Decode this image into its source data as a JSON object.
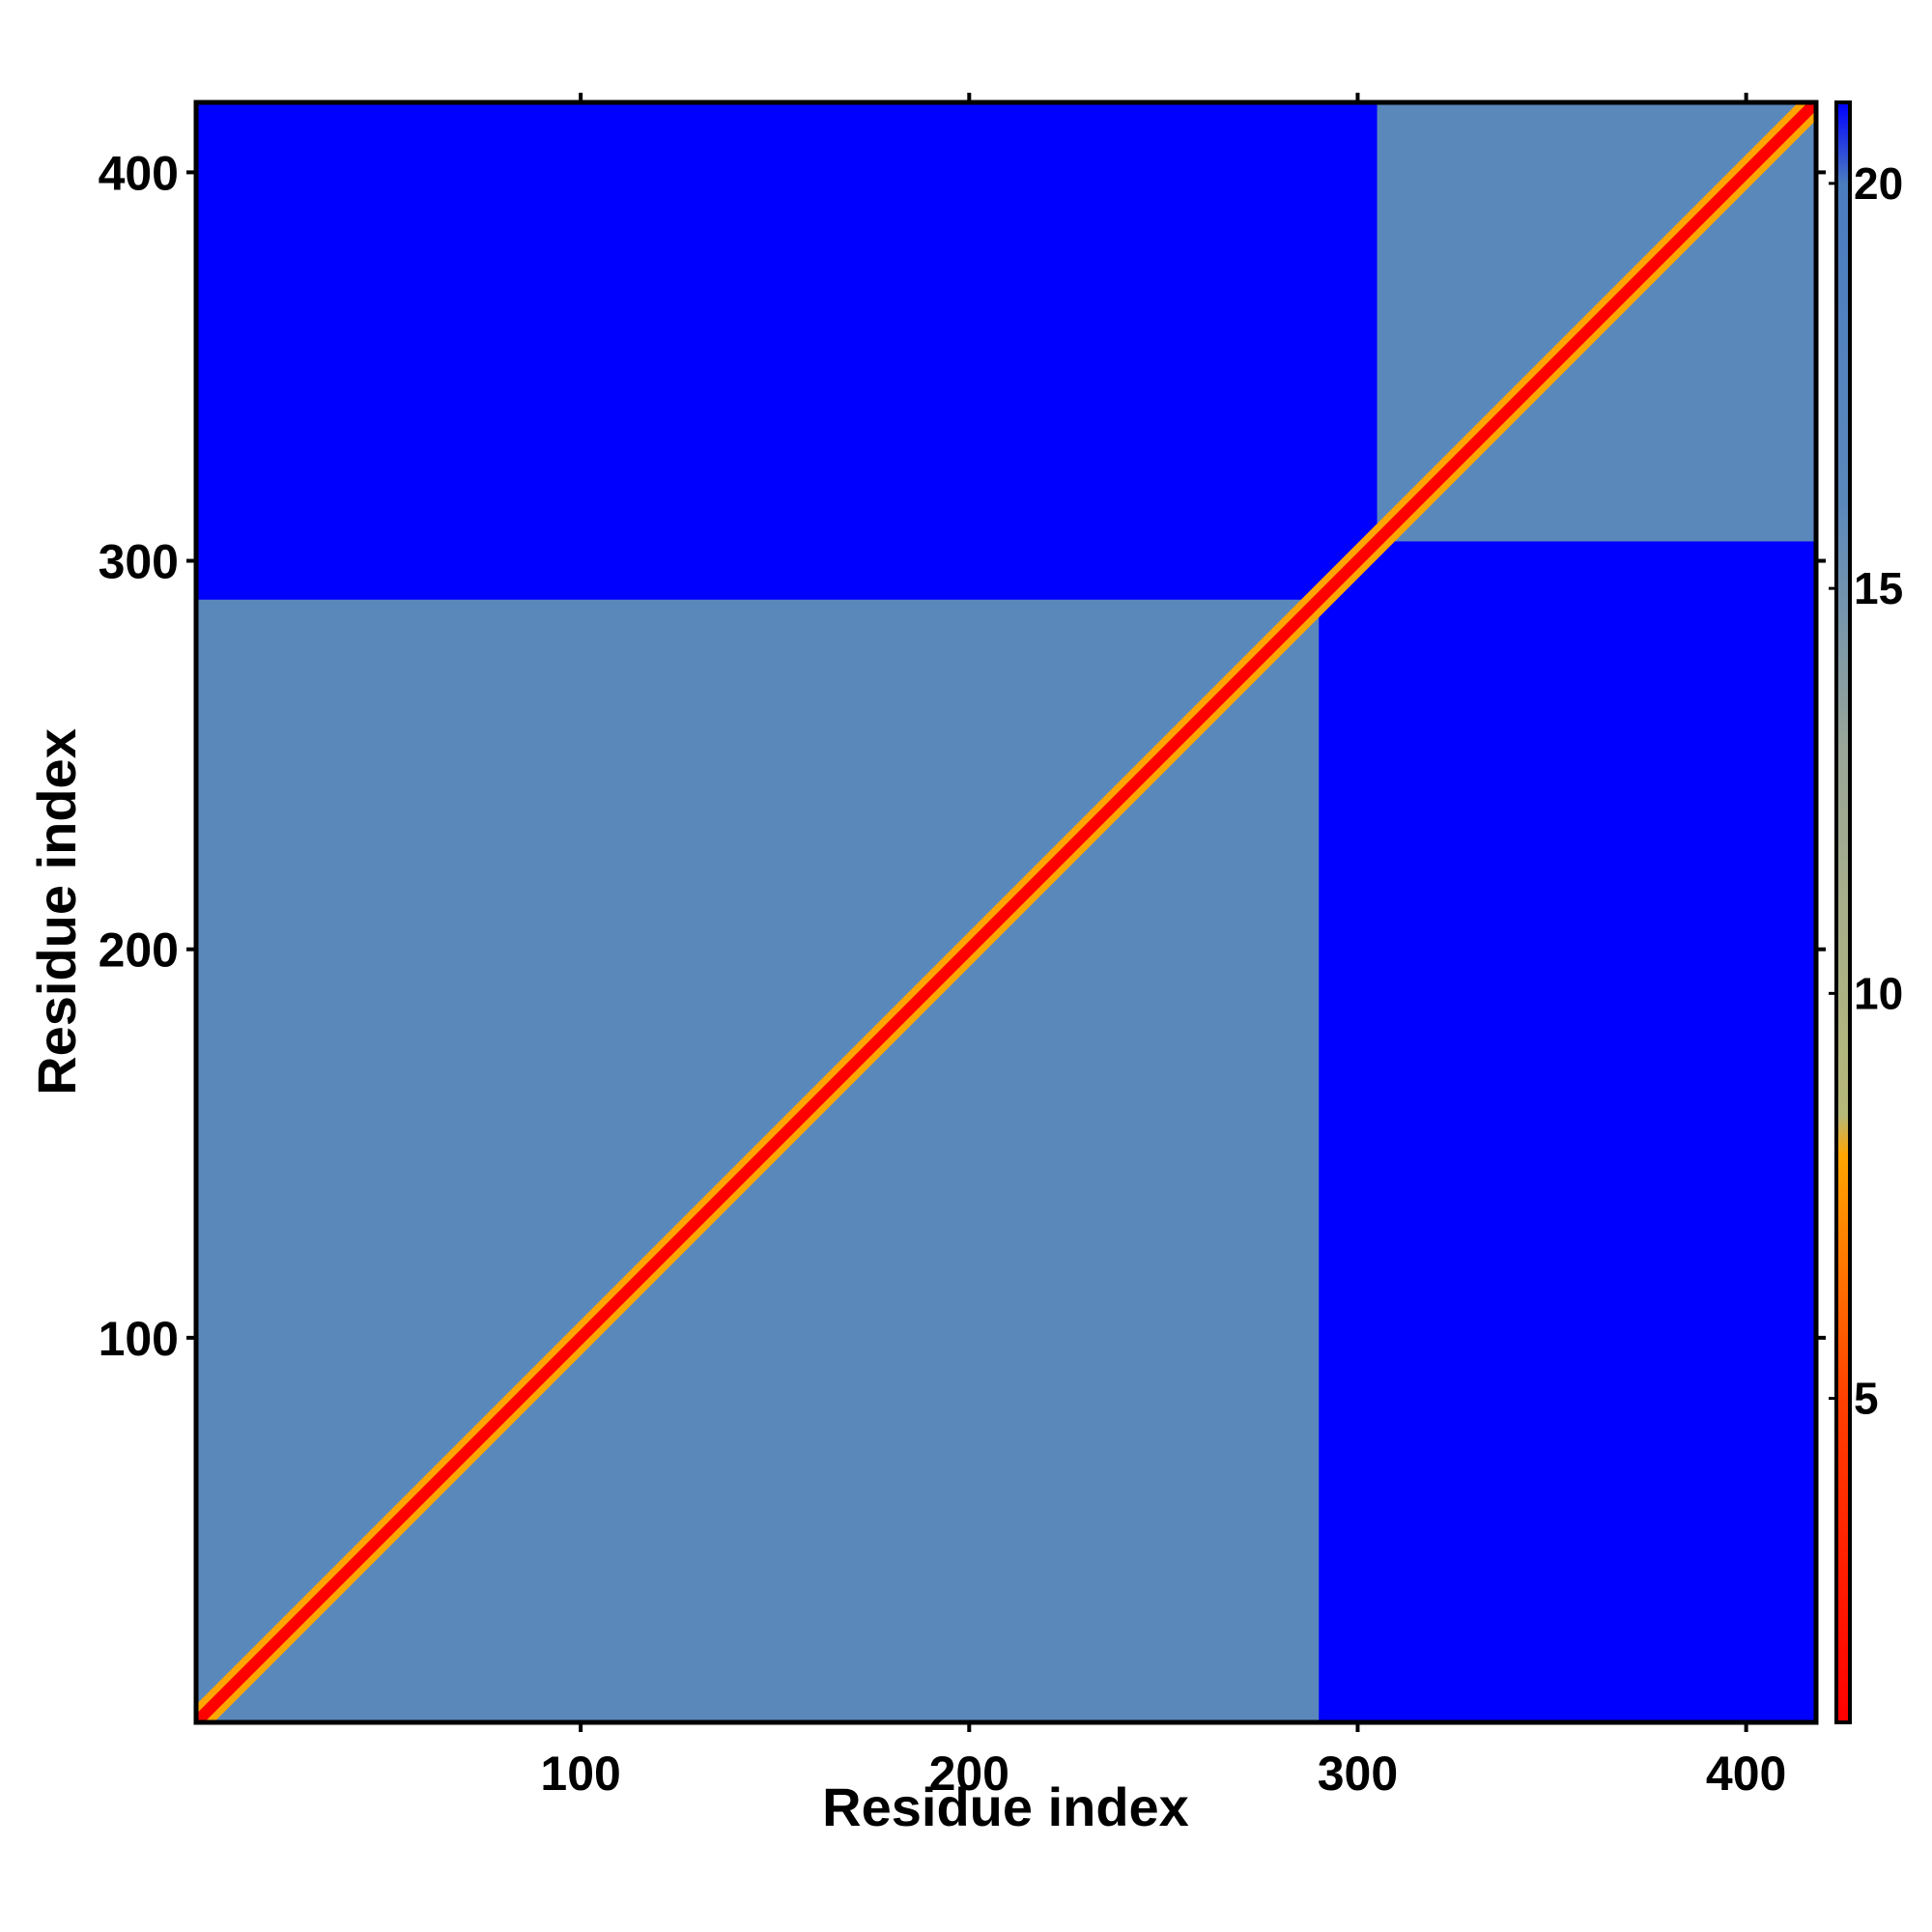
{
  "chart_data": {
    "type": "heatmap",
    "title": "",
    "xlabel": "Residue index",
    "ylabel": "Residue index",
    "xlim": [
      1,
      418
    ],
    "ylim": [
      1,
      418
    ],
    "xticks": [
      100,
      200,
      300,
      400
    ],
    "yticks": [
      100,
      200,
      300,
      400
    ],
    "colorbar": {
      "range": [
        1,
        21
      ],
      "ticks": [
        5,
        10,
        15,
        20
      ],
      "stops": [
        {
          "value": 1,
          "color": "#ff0000"
        },
        {
          "value": 5,
          "color": "#ff4000"
        },
        {
          "value": 8,
          "color": "#ffa500"
        },
        {
          "value": 8.5,
          "color": "#b6b878"
        },
        {
          "value": 13,
          "color": "#9aa698"
        },
        {
          "value": 16,
          "color": "#5b88bb"
        },
        {
          "value": 20,
          "color": "#4a7cc0"
        },
        {
          "value": 21,
          "color": "#0000ff"
        }
      ]
    },
    "background_value": 21,
    "domains": [
      {
        "start": 1,
        "end": 290,
        "value": 16
      },
      {
        "start": 305,
        "end": 418,
        "value": 16
      }
    ],
    "cross_domain_value": 21,
    "diagonal": {
      "core_value": 1,
      "halo_value": 8
    },
    "colors": {
      "background": "#0000ff",
      "domain": "#5b88bb",
      "diagonal": "#ff0000",
      "diagonal_halo": "#ffa500"
    }
  }
}
